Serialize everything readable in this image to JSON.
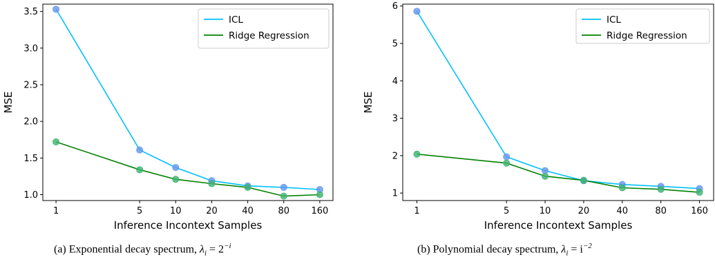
{
  "colors": {
    "icl": "#00bfff",
    "ridge": "#008000",
    "icl_marker": "#6495ed",
    "ridge_marker": "#3cb371"
  },
  "chart_data": [
    {
      "type": "line",
      "x": [
        1,
        5,
        10,
        20,
        40,
        80,
        160
      ],
      "x_tick_labels": [
        "1",
        "5",
        "10",
        "20",
        "40",
        "80",
        "160"
      ],
      "x_scale": "log",
      "xlabel": "Inference Incontext Samples",
      "ylabel": "MSE",
      "ylim": [
        0.92,
        3.6
      ],
      "y_ticks": [
        "1.0",
        "1.5",
        "2.0",
        "2.5",
        "3.0",
        "3.5"
      ],
      "legend_position": "top-right",
      "grid": false,
      "series": [
        {
          "name": "ICL",
          "values": [
            3.53,
            1.61,
            1.37,
            1.19,
            1.12,
            1.1,
            1.07
          ]
        },
        {
          "name": "Ridge Regression",
          "values": [
            1.72,
            1.34,
            1.21,
            1.15,
            1.1,
            0.98,
            1.0
          ]
        }
      ],
      "caption": {
        "prefix": "(a) Exponential decay spectrum,",
        "lambda": "λ",
        "sub": "i",
        "eq": " = 2",
        "sup": "−i"
      }
    },
    {
      "type": "line",
      "x": [
        1,
        5,
        10,
        20,
        40,
        80,
        160
      ],
      "x_tick_labels": [
        "1",
        "5",
        "10",
        "20",
        "40",
        "80",
        "160"
      ],
      "x_scale": "log",
      "xlabel": "Inference Incontext Samples",
      "ylabel": "MSE",
      "ylim": [
        0.8,
        6.05
      ],
      "y_ticks": [
        "1",
        "2",
        "3",
        "4",
        "5",
        "6"
      ],
      "legend_position": "top-right",
      "grid": false,
      "series": [
        {
          "name": "ICL",
          "values": [
            5.86,
            1.97,
            1.6,
            1.33,
            1.23,
            1.18,
            1.12
          ]
        },
        {
          "name": "Ridge Regression",
          "values": [
            2.04,
            1.8,
            1.45,
            1.34,
            1.14,
            1.1,
            1.02
          ]
        }
      ],
      "caption": {
        "prefix": "(b) Polynomial decay spectrum,",
        "lambda": "λ",
        "sub": "i",
        "eq": " = i",
        "sup": "−2"
      }
    }
  ]
}
